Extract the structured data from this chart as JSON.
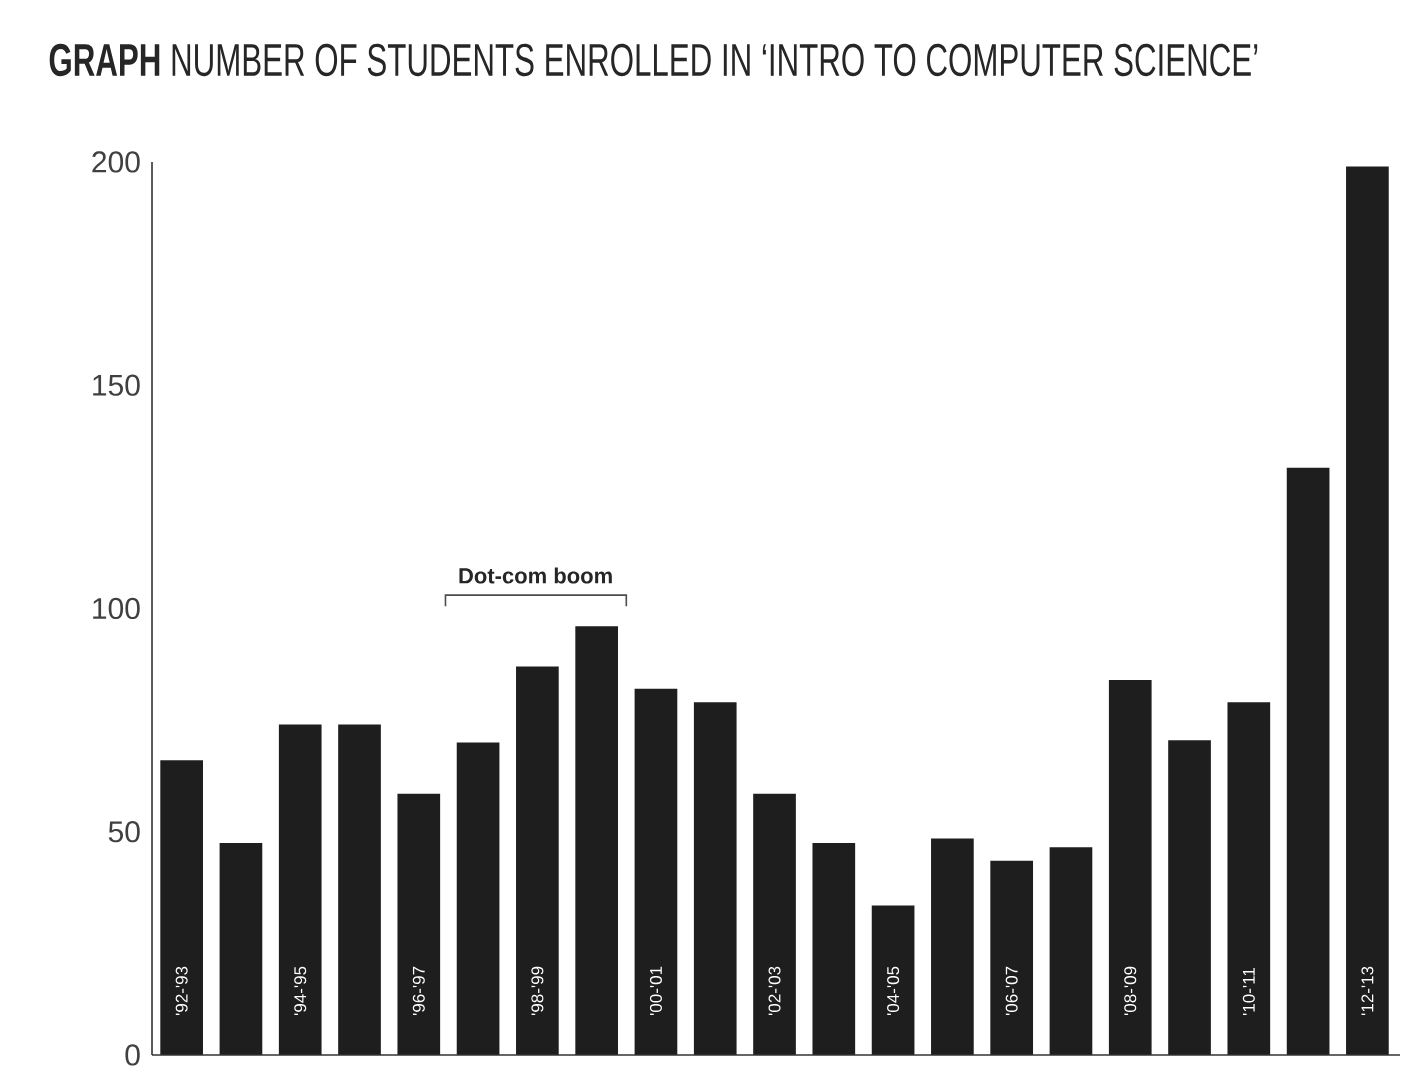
{
  "chart_data": {
    "type": "bar",
    "title": "**GRAPH** NUMBER OF STUDENTS ENROLLED IN ‘INTRO TO COMPUTER SCIENCE’",
    "categories": [
      "'92-'93",
      null,
      "'94-'95",
      null,
      "'96-'97",
      null,
      "'98-'99",
      null,
      "'00-'01",
      null,
      "'02-'03",
      null,
      "'04-'05",
      null,
      "'06-'07",
      null,
      "'08-'09",
      null,
      "'10-'11",
      null,
      "'12-'13"
    ],
    "values": [
      66,
      47.5,
      74,
      74,
      58.5,
      70,
      87,
      96,
      82,
      79,
      58.5,
      47.5,
      33.5,
      48.5,
      43.5,
      46.5,
      84,
      70.5,
      79,
      131.5,
      199
    ],
    "color": "#1e1e1e",
    "ylim": [
      0,
      200
    ],
    "yticks": [
      0,
      50,
      100,
      150,
      200
    ],
    "annotations": [
      "Dot-com boom"
    ]
  }
}
